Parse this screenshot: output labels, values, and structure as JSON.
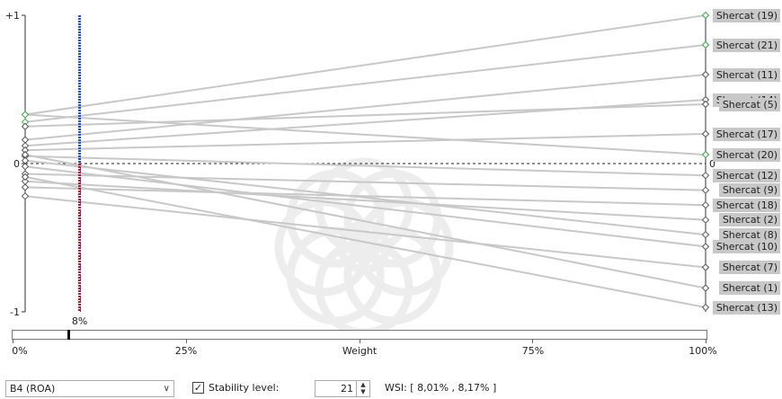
{
  "chart_data": {
    "type": "line",
    "ylim": [
      -1,
      1
    ],
    "xlim": [
      0,
      100
    ],
    "y_ticks": [
      "+1",
      "0",
      "-1"
    ],
    "x_ticks": [
      "0%",
      "25%",
      "Weight",
      "75%",
      "100%"
    ],
    "xlabel": "Weight",
    "current_weight_label": "8%",
    "current_weight": 8,
    "series": [
      {
        "name": "Shercat (19)",
        "y0": 0.33,
        "y100": 1.0,
        "stable": true
      },
      {
        "name": "Shercat (21)",
        "y0": 0.28,
        "y100": 0.8,
        "stable": true
      },
      {
        "name": "Shercat (11)",
        "y0": 0.16,
        "y100": 0.6,
        "stable": false
      },
      {
        "name": "Shercat (14)",
        "y0": 0.12,
        "y100": 0.43,
        "stable": false
      },
      {
        "name": "Shercat (5)",
        "y0": 0.25,
        "y100": 0.4,
        "stable": false
      },
      {
        "name": "Shercat (17)",
        "y0": 0.09,
        "y100": 0.2,
        "stable": false
      },
      {
        "name": "Shercat (20)",
        "y0": 0.33,
        "y100": 0.06,
        "stable": true
      },
      {
        "name": "Shercat (12)",
        "y0": 0.05,
        "y100": -0.08,
        "stable": false
      },
      {
        "name": "Shercat (9)",
        "y0": -0.07,
        "y100": -0.18,
        "stable": false
      },
      {
        "name": "Shercat (18)",
        "y0": -0.16,
        "y100": -0.28,
        "stable": false
      },
      {
        "name": "Shercat (2)",
        "y0": -0.12,
        "y100": -0.38,
        "stable": false
      },
      {
        "name": "Shercat (8)",
        "y0": 0.02,
        "y100": -0.48,
        "stable": false
      },
      {
        "name": "Shercat (10)",
        "y0": -0.02,
        "y100": -0.56,
        "stable": false
      },
      {
        "name": "Shercat (7)",
        "y0": -0.22,
        "y100": -0.7,
        "stable": false
      },
      {
        "name": "Shercat (1)",
        "y0": 0.06,
        "y100": -0.84,
        "stable": false
      },
      {
        "name": "Shercat (13)",
        "y0": -0.09,
        "y100": -0.97,
        "stable": false
      }
    ],
    "colors": {
      "line": "#c8c8c8",
      "stable_marker": "#3aa84a",
      "marker": "#555555",
      "weight_line_top": "#1f4fd6",
      "weight_line_bottom": "#c0132b"
    }
  },
  "labels": [
    "Shercat (19)",
    "Shercat (21)",
    "Shercat (11)",
    "Shercat (14)",
    "Shercat (5)",
    "Shercat (17)",
    "Shercat (20)",
    "Shercat (12)",
    "Shercat (9)",
    "Shercat (18)",
    "Shercat (2)",
    "Shercat (8)",
    "Shercat (10)",
    "Shercat (7)",
    "Shercat (1)",
    "Shercat (13)"
  ],
  "controls": {
    "criterion_select": "B4 (ROA)",
    "stability_checked": "✓",
    "stability_label": "Stability level:",
    "stability_value": "21",
    "wsi_text": "WSI: [ 8,01% , 8,17% ]"
  },
  "slider": {
    "value": 8
  }
}
